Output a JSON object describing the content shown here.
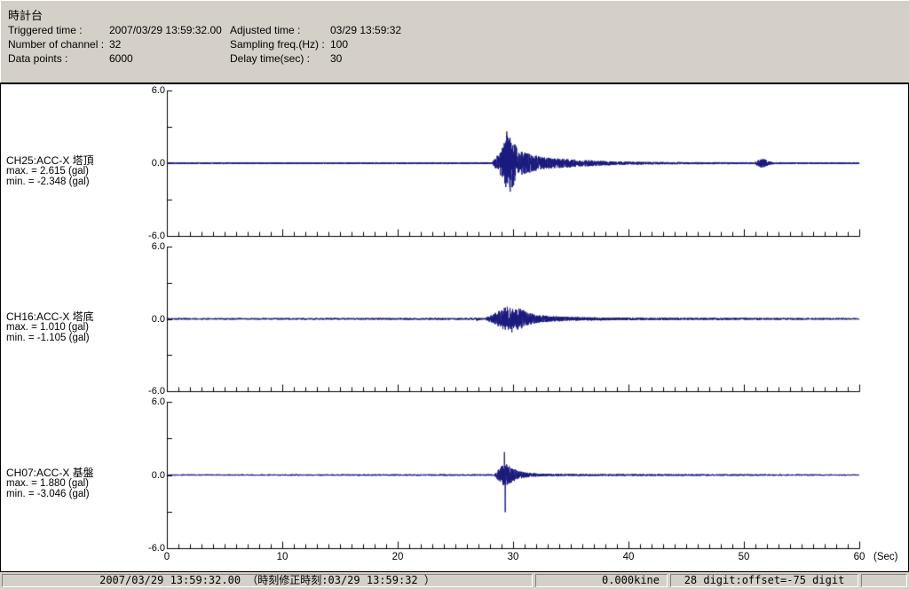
{
  "header": {
    "title": "時計台",
    "col1": [
      {
        "label": "Triggered time :",
        "value": "2007/03/29 13:59:32.00"
      },
      {
        "label": "Number of channel :",
        "value": "32"
      },
      {
        "label": "Data points :",
        "value": "6000"
      }
    ],
    "col2": [
      {
        "label": "Adjusted time :",
        "value": "03/29 13:59:32"
      },
      {
        "label": "Sampling freq.(Hz) :",
        "value": "100"
      },
      {
        "label": "Delay time(sec) :",
        "value": "30"
      }
    ]
  },
  "status_bar": {
    "time_text": "2007/03/29 13:59:32.00  （時刻修正時刻:03/29 13:59:32  ）",
    "kine_text": "0.000kine",
    "digit_text": "28 digit:offset=-75 digit"
  },
  "colors": {
    "chrome": "#d4d0c8",
    "plot_background": "#ffffff",
    "waveform": "#1a1a7e",
    "axis": "#000000"
  },
  "chart_data": {
    "type": "line",
    "title": "",
    "xlabel": "(Sec)",
    "ylabel": "gal",
    "x_axis": {
      "min": 0,
      "max": 60,
      "minor_tick_sec": 1,
      "major_tick_sec": 10,
      "tick_labels": [
        "0",
        "10",
        "20",
        "30",
        "40",
        "50",
        "60"
      ],
      "unit_label": "(Sec)"
    },
    "y_axis": {
      "min": -6.0,
      "max": 6.0,
      "tick_values": [
        6.0,
        0.0,
        -6.0
      ],
      "tick_labels": [
        "6.0",
        "0.0",
        "-6.0"
      ]
    },
    "sampling_freq_hz": 100,
    "data_points": 6000,
    "grid": false,
    "legend": "none",
    "rng_seed": 20070329,
    "channels": [
      {
        "name": "CH25:ACC-X 塔頂",
        "max_label": "max. = 2.615 (gal)",
        "min_label": "min. = -2.348 (gal)",
        "max_gal": 2.615,
        "min_gal": -2.348,
        "envelope": [
          [
            0,
            0.07
          ],
          [
            28.2,
            0.08
          ],
          [
            28.6,
            0.6
          ],
          [
            29.1,
            1.3
          ],
          [
            29.5,
            2.4
          ],
          [
            30.0,
            2.0
          ],
          [
            30.4,
            1.1
          ],
          [
            31.2,
            0.85
          ],
          [
            32.5,
            0.5
          ],
          [
            34,
            0.4
          ],
          [
            36,
            0.28
          ],
          [
            38,
            0.18
          ],
          [
            40,
            0.12
          ],
          [
            44,
            0.09
          ],
          [
            50.9,
            0.08
          ],
          [
            51.3,
            0.3
          ],
          [
            51.7,
            0.38
          ],
          [
            52.2,
            0.15
          ],
          [
            52.6,
            0.08
          ],
          [
            60,
            0.07
          ]
        ],
        "spikes": [
          [
            29.45,
            2.615
          ],
          [
            29.75,
            -2.348
          ]
        ]
      },
      {
        "name": "CH16:ACC-X 塔底",
        "max_label": "max. = 1.010 (gal)",
        "min_label": "min. = -1.105 (gal)",
        "max_gal": 1.01,
        "min_gal": -1.105,
        "envelope": [
          [
            0,
            0.06
          ],
          [
            26.7,
            0.07
          ],
          [
            26.9,
            0.18
          ],
          [
            27.1,
            0.08
          ],
          [
            27.6,
            0.07
          ],
          [
            28.0,
            0.3
          ],
          [
            28.6,
            0.55
          ],
          [
            29.2,
            0.95
          ],
          [
            29.6,
            1.0
          ],
          [
            30.1,
            0.75
          ],
          [
            30.5,
            0.95
          ],
          [
            31.2,
            0.55
          ],
          [
            32,
            0.35
          ],
          [
            33,
            0.25
          ],
          [
            34.5,
            0.18
          ],
          [
            36.5,
            0.14
          ],
          [
            39,
            0.11
          ],
          [
            43,
            0.09
          ],
          [
            48,
            0.08
          ],
          [
            60,
            0.06
          ]
        ],
        "spikes": [
          [
            29.5,
            1.01
          ],
          [
            29.9,
            -1.105
          ]
        ]
      },
      {
        "name": "CH07:ACC-X 基盤",
        "max_label": "max. = 1.880 (gal)",
        "min_label": "min. = -3.046 (gal)",
        "max_gal": 1.88,
        "min_gal": -3.046,
        "envelope": [
          [
            0,
            0.05
          ],
          [
            28.4,
            0.06
          ],
          [
            28.7,
            0.45
          ],
          [
            29.1,
            0.8
          ],
          [
            29.4,
            0.9
          ],
          [
            29.9,
            0.6
          ],
          [
            30.4,
            0.35
          ],
          [
            31.2,
            0.2
          ],
          [
            32.2,
            0.12
          ],
          [
            34,
            0.08
          ],
          [
            60,
            0.05
          ]
        ],
        "spikes": [
          [
            29.25,
            1.88
          ],
          [
            29.32,
            -3.046
          ]
        ]
      }
    ]
  }
}
